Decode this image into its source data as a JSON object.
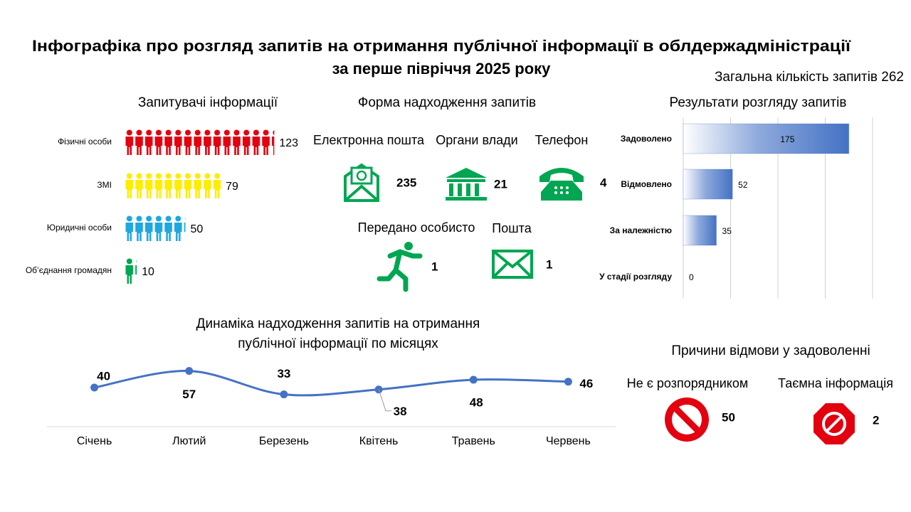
{
  "title": [
    "Інфографіка про розгляд запитів на отримання публічної інформації в облдержадміністрації",
    "за перше півріччя 2025 року"
  ],
  "total": {
    "label": "Загальна кількість запитів",
    "value": 262
  },
  "chart_data": [
    {
      "type": "pictogram",
      "title": "Запитувачі інформації",
      "categories": [
        "Фізичні особи",
        "ЗМІ",
        "Юридичні особи",
        "Об’єднання громадян"
      ],
      "values": [
        123,
        79,
        50,
        10
      ],
      "colors": [
        "#e3000f",
        "#ffed00",
        "#1ea7e1",
        "#00a651"
      ]
    },
    {
      "type": "bar",
      "orientation": "horizontal",
      "title": "Результати розгляду запитів",
      "categories": [
        "Задоволено",
        "Відмовлено",
        "За належністю",
        "У стадії розгляду"
      ],
      "values": [
        175,
        52,
        35,
        0
      ],
      "color": "#4472c4",
      "xlim": [
        0,
        200
      ],
      "xticks": [
        0,
        50,
        100,
        150,
        200
      ],
      "grid": true
    },
    {
      "type": "line",
      "title": [
        "Динаміка надходження запитів на отримання",
        "публічної інформації по місяцях"
      ],
      "categories": [
        "Січень",
        "Лютий",
        "Березень",
        "Квітень",
        "Травень",
        "Червень"
      ],
      "values": [
        40,
        57,
        33,
        38,
        48,
        46
      ],
      "color": "#4472c4",
      "ylim": [
        0,
        100
      ]
    }
  ],
  "forms": {
    "title": "Форма надходження запитів",
    "items": [
      {
        "label": "Електронна пошта",
        "value": 235
      },
      {
        "label": "Органи влади",
        "value": 21
      },
      {
        "label": "Телефон",
        "value": 4
      },
      {
        "label": "Передано особисто",
        "value": 1
      },
      {
        "label": "Пошта",
        "value": 1
      }
    ]
  },
  "refusals": {
    "title": "Причини відмови у задоволенні",
    "items": [
      {
        "label": "Не є розпорядником",
        "value": 50
      },
      {
        "label": "Таємна інформація",
        "value": 2
      }
    ]
  }
}
